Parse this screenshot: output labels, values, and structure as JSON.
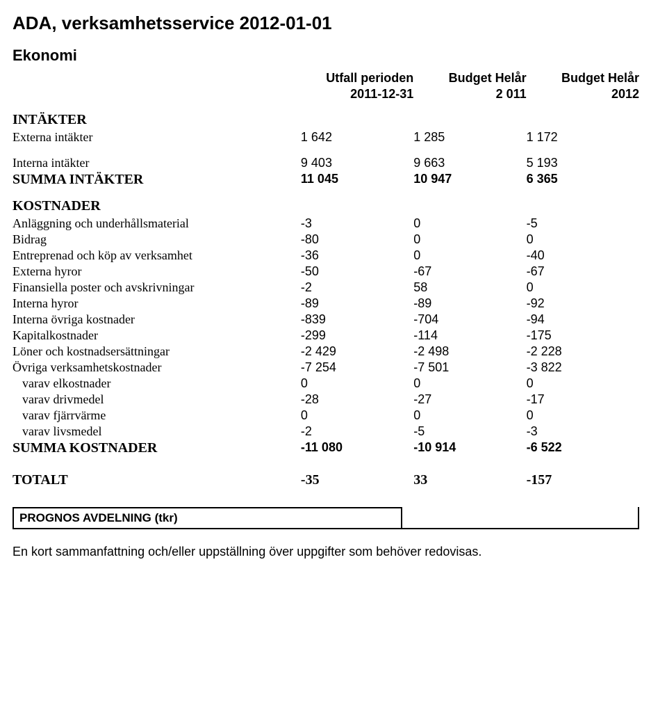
{
  "page_title": "ADA, verksamhetsservice 2012-01-01",
  "section_heading": "Ekonomi",
  "columns": {
    "l1c1": "Utfall perioden",
    "l1c2": "Budget Helår",
    "l1c3": "Budget Helår",
    "l2c1": "2011-12-31",
    "l2c2": "2 011",
    "l2c3": "2012"
  },
  "intakter": {
    "heading": "INTÄKTER",
    "rows": [
      {
        "label": "Externa intäkter",
        "v1": "1 642",
        "v2": "1 285",
        "v3": "1 172"
      },
      {
        "label": "Interna intäkter",
        "v1": "9 403",
        "v2": "9 663",
        "v3": "5 193"
      }
    ],
    "sum": {
      "label": "SUMMA INTÄKTER",
      "v1": "11 045",
      "v2": "10 947",
      "v3": "6 365"
    }
  },
  "kostnader": {
    "heading": "KOSTNADER",
    "rows": [
      {
        "label": "Anläggning och underhållsmaterial",
        "v1": "-3",
        "v2": "0",
        "v3": "-5",
        "indent": false
      },
      {
        "label": "Bidrag",
        "v1": "-80",
        "v2": "0",
        "v3": "0",
        "indent": false
      },
      {
        "label": "Entreprenad och köp av verksamhet",
        "v1": "-36",
        "v2": "0",
        "v3": "-40",
        "indent": false
      },
      {
        "label": "Externa hyror",
        "v1": "-50",
        "v2": "-67",
        "v3": "-67",
        "indent": false
      },
      {
        "label": "Finansiella poster och avskrivningar",
        "v1": "-2",
        "v2": "58",
        "v3": "0",
        "indent": false
      },
      {
        "label": "Interna hyror",
        "v1": "-89",
        "v2": "-89",
        "v3": "-92",
        "indent": false
      },
      {
        "label": "Interna övriga kostnader",
        "v1": "-839",
        "v2": "-704",
        "v3": "-94",
        "indent": false
      },
      {
        "label": "Kapitalkostnader",
        "v1": "-299",
        "v2": "-114",
        "v3": "-175",
        "indent": false
      },
      {
        "label": "Löner och kostnadsersättningar",
        "v1": "-2 429",
        "v2": "-2 498",
        "v3": "-2 228",
        "indent": false
      },
      {
        "label": "Övriga verksamhetskostnader",
        "v1": "-7 254",
        "v2": "-7 501",
        "v3": "-3 822",
        "indent": false
      },
      {
        "label": "varav elkostnader",
        "v1": "0",
        "v2": "0",
        "v3": "0",
        "indent": true
      },
      {
        "label": "varav drivmedel",
        "v1": "-28",
        "v2": "-27",
        "v3": "-17",
        "indent": true
      },
      {
        "label": "varav fjärrvärme",
        "v1": "0",
        "v2": "0",
        "v3": "0",
        "indent": true
      },
      {
        "label": "varav livsmedel",
        "v1": "-2",
        "v2": "-5",
        "v3": "-3",
        "indent": true
      }
    ],
    "sum": {
      "label": "SUMMA KOSTNADER",
      "v1": "-11 080",
      "v2": "-10 914",
      "v3": "-6 522"
    }
  },
  "total": {
    "label": "TOTALT",
    "v1": "-35",
    "v2": "33",
    "v3": "-157"
  },
  "prognos_label": "PROGNOS AVDELNING (tkr)",
  "footnote": "En kort sammanfattning och/eller uppställning över uppgifter som behöver redovisas."
}
